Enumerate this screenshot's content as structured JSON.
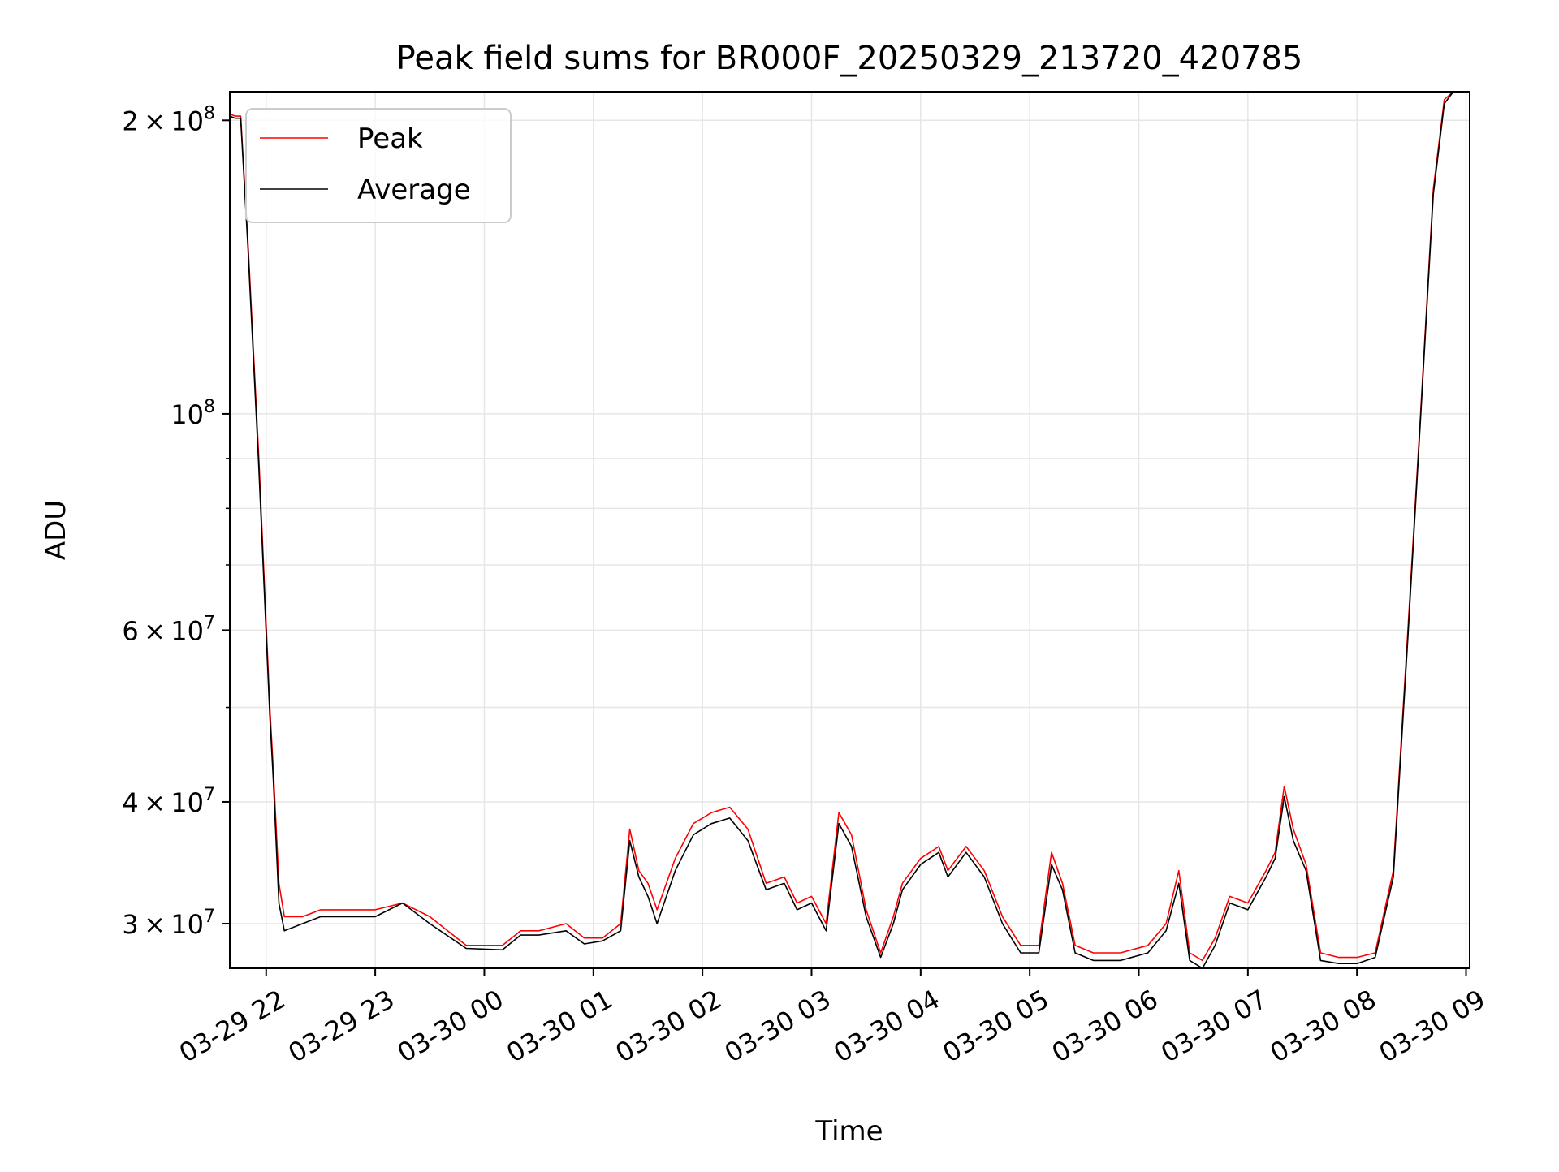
{
  "chart_data": {
    "type": "line",
    "title": "Peak field sums for BR000F_20250329_213720_420785",
    "xlabel": "Time",
    "ylabel": "ADU",
    "x_unit": "datetime",
    "xlim": [
      "2025-03-29 21:40",
      "2025-03-30 09:02"
    ],
    "ylim": [
      27000000,
      214000000
    ],
    "yscale": "log",
    "grid": true,
    "legend_position": "upper-left",
    "x_ticks": [
      {
        "value": "2025-03-29 22:00",
        "label": "03-29 22"
      },
      {
        "value": "2025-03-29 23:00",
        "label": "03-29 23"
      },
      {
        "value": "2025-03-30 00:00",
        "label": "03-30 00"
      },
      {
        "value": "2025-03-30 01:00",
        "label": "03-30 01"
      },
      {
        "value": "2025-03-30 02:00",
        "label": "03-30 02"
      },
      {
        "value": "2025-03-30 03:00",
        "label": "03-30 03"
      },
      {
        "value": "2025-03-30 04:00",
        "label": "03-30 04"
      },
      {
        "value": "2025-03-30 05:00",
        "label": "03-30 05"
      },
      {
        "value": "2025-03-30 06:00",
        "label": "03-30 06"
      },
      {
        "value": "2025-03-30 07:00",
        "label": "03-30 07"
      },
      {
        "value": "2025-03-30 08:00",
        "label": "03-30 08"
      },
      {
        "value": "2025-03-30 09:00",
        "label": "03-30 09"
      }
    ],
    "y_ticks_major": [
      {
        "value": 30000000,
        "base": "3",
        "exp": "7"
      },
      {
        "value": 40000000,
        "base": "4",
        "exp": "7"
      },
      {
        "value": 60000000,
        "base": "6",
        "exp": "7"
      },
      {
        "value": 100000000,
        "base": "",
        "exp": "8"
      },
      {
        "value": 200000000,
        "base": "2",
        "exp": "8"
      }
    ],
    "y_ticks_minor": [
      50000000,
      70000000,
      80000000,
      90000000
    ],
    "series": [
      {
        "name": "Peak",
        "color": "#ff0000",
        "x": [
          "2025-03-29 21:37",
          "2025-03-29 21:43",
          "2025-03-29 21:46",
          "2025-03-29 21:50",
          "2025-03-29 21:56",
          "2025-03-29 22:02",
          "2025-03-29 22:04",
          "2025-03-29 22:07",
          "2025-03-29 22:10",
          "2025-03-29 22:20",
          "2025-03-29 22:30",
          "2025-03-29 22:45",
          "2025-03-29 23:00",
          "2025-03-29 23:15",
          "2025-03-29 23:30",
          "2025-03-29 23:50",
          "2025-03-30 00:10",
          "2025-03-30 00:20",
          "2025-03-30 00:30",
          "2025-03-30 00:45",
          "2025-03-30 00:55",
          "2025-03-30 01:05",
          "2025-03-30 01:15",
          "2025-03-30 01:20",
          "2025-03-30 01:25",
          "2025-03-30 01:30",
          "2025-03-30 01:35",
          "2025-03-30 01:45",
          "2025-03-30 01:55",
          "2025-03-30 02:05",
          "2025-03-30 02:15",
          "2025-03-30 02:25",
          "2025-03-30 02:35",
          "2025-03-30 02:45",
          "2025-03-30 02:52",
          "2025-03-30 03:00",
          "2025-03-30 03:08",
          "2025-03-30 03:15",
          "2025-03-30 03:22",
          "2025-03-30 03:30",
          "2025-03-30 03:38",
          "2025-03-30 03:45",
          "2025-03-30 03:50",
          "2025-03-30 04:00",
          "2025-03-30 04:10",
          "2025-03-30 04:15",
          "2025-03-30 04:25",
          "2025-03-30 04:35",
          "2025-03-30 04:45",
          "2025-03-30 04:55",
          "2025-03-30 05:05",
          "2025-03-30 05:12",
          "2025-03-30 05:18",
          "2025-03-30 05:25",
          "2025-03-30 05:35",
          "2025-03-30 05:50",
          "2025-03-30 06:05",
          "2025-03-30 06:15",
          "2025-03-30 06:22",
          "2025-03-30 06:28",
          "2025-03-30 06:35",
          "2025-03-30 06:42",
          "2025-03-30 06:50",
          "2025-03-30 07:00",
          "2025-03-30 07:10",
          "2025-03-30 07:15",
          "2025-03-30 07:20",
          "2025-03-30 07:25",
          "2025-03-30 07:32",
          "2025-03-30 07:40",
          "2025-03-30 07:50",
          "2025-03-30 08:00",
          "2025-03-30 08:10",
          "2025-03-30 08:20",
          "2025-03-30 08:28",
          "2025-03-30 08:35",
          "2025-03-30 08:42",
          "2025-03-30 08:48",
          "2025-03-30 08:53",
          "2025-03-30 09:00"
        ],
        "y": [
          203000000,
          202000000,
          202000000,
          150000000,
          90000000,
          50000000,
          43000000,
          33000000,
          30500000,
          30500000,
          31000000,
          31000000,
          31000000,
          31500000,
          30500000,
          28500000,
          28500000,
          29500000,
          29500000,
          30000000,
          29000000,
          29000000,
          30000000,
          37500000,
          34000000,
          33000000,
          31000000,
          35000000,
          38000000,
          39000000,
          39500000,
          37500000,
          33000000,
          33500000,
          31500000,
          32000000,
          30000000,
          39000000,
          37000000,
          31000000,
          28000000,
          30500000,
          33000000,
          35000000,
          36000000,
          34000000,
          36000000,
          34000000,
          30500000,
          28500000,
          28500000,
          35500000,
          33000000,
          28500000,
          28000000,
          28000000,
          28500000,
          30000000,
          34000000,
          28000000,
          27500000,
          29000000,
          32000000,
          31500000,
          34000000,
          35500000,
          41500000,
          37500000,
          34500000,
          28000000,
          27700000,
          27700000,
          28000000,
          34000000,
          60000000,
          100000000,
          170000000,
          210000000,
          214000000,
          214000000
        ]
      },
      {
        "name": "Average",
        "color": "#000000",
        "x": [
          "2025-03-29 21:37",
          "2025-03-29 21:43",
          "2025-03-29 21:46",
          "2025-03-29 21:50",
          "2025-03-29 21:56",
          "2025-03-29 22:02",
          "2025-03-29 22:04",
          "2025-03-29 22:07",
          "2025-03-29 22:10",
          "2025-03-29 22:20",
          "2025-03-29 22:30",
          "2025-03-29 22:45",
          "2025-03-29 23:00",
          "2025-03-29 23:15",
          "2025-03-29 23:30",
          "2025-03-29 23:50",
          "2025-03-30 00:10",
          "2025-03-30 00:20",
          "2025-03-30 00:30",
          "2025-03-30 00:45",
          "2025-03-30 00:55",
          "2025-03-30 01:05",
          "2025-03-30 01:15",
          "2025-03-30 01:20",
          "2025-03-30 01:25",
          "2025-03-30 01:30",
          "2025-03-30 01:35",
          "2025-03-30 01:45",
          "2025-03-30 01:55",
          "2025-03-30 02:05",
          "2025-03-30 02:15",
          "2025-03-30 02:25",
          "2025-03-30 02:35",
          "2025-03-30 02:45",
          "2025-03-30 02:52",
          "2025-03-30 03:00",
          "2025-03-30 03:08",
          "2025-03-30 03:15",
          "2025-03-30 03:22",
          "2025-03-30 03:30",
          "2025-03-30 03:38",
          "2025-03-30 03:45",
          "2025-03-30 03:50",
          "2025-03-30 04:00",
          "2025-03-30 04:10",
          "2025-03-30 04:15",
          "2025-03-30 04:25",
          "2025-03-30 04:35",
          "2025-03-30 04:45",
          "2025-03-30 04:55",
          "2025-03-30 05:05",
          "2025-03-30 05:12",
          "2025-03-30 05:18",
          "2025-03-30 05:25",
          "2025-03-30 05:35",
          "2025-03-30 05:50",
          "2025-03-30 06:05",
          "2025-03-30 06:15",
          "2025-03-30 06:22",
          "2025-03-30 06:28",
          "2025-03-30 06:35",
          "2025-03-30 06:42",
          "2025-03-30 06:50",
          "2025-03-30 07:00",
          "2025-03-30 07:10",
          "2025-03-30 07:15",
          "2025-03-30 07:20",
          "2025-03-30 07:25",
          "2025-03-30 07:32",
          "2025-03-30 07:40",
          "2025-03-30 07:50",
          "2025-03-30 08:00",
          "2025-03-30 08:10",
          "2025-03-30 08:20",
          "2025-03-30 08:28",
          "2025-03-30 08:35",
          "2025-03-30 08:42",
          "2025-03-30 08:48",
          "2025-03-30 08:53",
          "2025-03-30 09:00"
        ],
        "y": [
          202000000,
          201000000,
          201000000,
          148000000,
          88000000,
          49000000,
          42000000,
          31500000,
          29500000,
          30000000,
          30500000,
          30500000,
          30500000,
          31500000,
          30000000,
          28300000,
          28200000,
          29200000,
          29200000,
          29500000,
          28600000,
          28800000,
          29500000,
          36500000,
          33500000,
          32000000,
          30000000,
          34000000,
          37000000,
          38000000,
          38500000,
          36500000,
          32500000,
          33000000,
          31000000,
          31500000,
          29500000,
          38000000,
          36000000,
          30500000,
          27700000,
          30000000,
          32500000,
          34500000,
          35500000,
          33500000,
          35500000,
          33500000,
          30000000,
          28000000,
          28000000,
          34500000,
          32500000,
          28000000,
          27500000,
          27500000,
          28000000,
          29500000,
          33000000,
          27500000,
          27000000,
          28500000,
          31500000,
          31000000,
          33500000,
          35000000,
          40500000,
          36500000,
          34000000,
          27500000,
          27300000,
          27300000,
          27700000,
          33500000,
          59000000,
          99000000,
          168000000,
          208000000,
          214000000,
          214000000
        ]
      }
    ]
  }
}
